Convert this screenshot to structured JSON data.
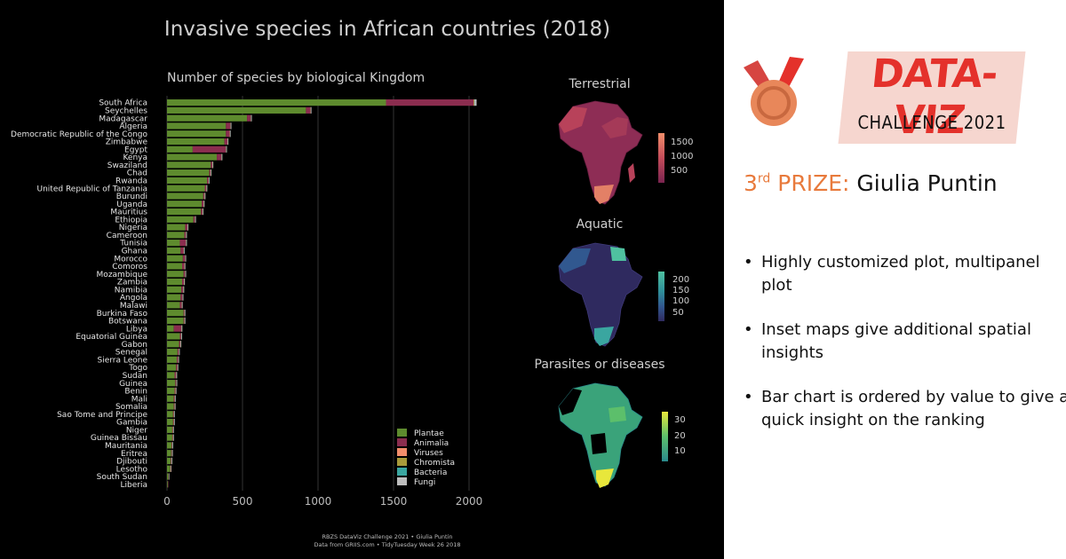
{
  "slide": {
    "badge_title": "DATA-VIZ",
    "badge_subtitle": "CHALLENGE 2021",
    "prize_ordinal": "3",
    "prize_suffix": "rd",
    "prize_label": " PRIZE:",
    "winner": "Giulia Puntin",
    "points": [
      "Highly customized plot, multipanel plot",
      "Inset maps give additional spatial insights",
      "Bar chart is ordered by value to give a quick insight on the ranking"
    ],
    "colors": {
      "accent": "#e87a3c",
      "badge_red": "#e4312b",
      "medal_ribbon": "#d64541",
      "medal": "#e8875a"
    },
    "icon": "medal-icon"
  },
  "chart_data": [
    {
      "type": "bar",
      "title": "Invasive species in African countries (2018)",
      "subtitle": "Number of species by biological Kingdom",
      "xlabel": "",
      "ylabel": "",
      "xlim": [
        0,
        2050
      ],
      "xticks": [
        "0",
        "500",
        "1000",
        "1500",
        "2000"
      ],
      "legend_position": "bottom-right",
      "categories": [
        "South Africa",
        "Seychelles",
        "Madagascar",
        "Algeria",
        "Democratic Republic of the Congo",
        "Zimbabwe",
        "Egypt",
        "Kenya",
        "Swaziland",
        "Chad",
        "Rwanda",
        "United Republic of Tanzania",
        "Burundi",
        "Uganda",
        "Mauritius",
        "Ethiopia",
        "Nigeria",
        "Cameroon",
        "Tunisia",
        "Ghana",
        "Morocco",
        "Comoros",
        "Mozambique",
        "Zambia",
        "Namibia",
        "Angola",
        "Malawi",
        "Burkina Faso",
        "Botswana",
        "Libya",
        "Equatorial Guinea",
        "Gabon",
        "Senegal",
        "Sierra Leone",
        "Togo",
        "Sudan",
        "Guinea",
        "Benin",
        "Mali",
        "Somalia",
        "Sao Tome and Principe",
        "Gambia",
        "Niger",
        "Guinea Bissau",
        "Mauritania",
        "Eritrea",
        "Djibouti",
        "Lesotho",
        "South Sudan",
        "Liberia"
      ],
      "series": [
        {
          "name": "Plantae",
          "color": "#5e8b2e",
          "values": [
            1450,
            920,
            530,
            390,
            390,
            380,
            170,
            330,
            290,
            280,
            265,
            250,
            240,
            230,
            225,
            175,
            120,
            115,
            85,
            90,
            105,
            100,
            110,
            100,
            95,
            90,
            85,
            110,
            110,
            45,
            85,
            80,
            70,
            65,
            60,
            50,
            55,
            50,
            45,
            45,
            40,
            40,
            35,
            35,
            30,
            28,
            25,
            22,
            10,
            5
          ]
        },
        {
          "name": "Animalia",
          "color": "#8b2d4f",
          "values": [
            580,
            30,
            25,
            30,
            25,
            20,
            220,
            30,
            10,
            8,
            10,
            10,
            8,
            12,
            10,
            10,
            15,
            10,
            40,
            20,
            15,
            15,
            10,
            12,
            12,
            12,
            12,
            5,
            5,
            50,
            8,
            8,
            8,
            8,
            8,
            10,
            6,
            6,
            6,
            5,
            5,
            5,
            4,
            4,
            4,
            4,
            4,
            2,
            2,
            1
          ]
        },
        {
          "name": "Viruses",
          "color": "#f28e6b",
          "values": [
            2,
            1,
            1,
            1,
            1,
            1,
            1,
            1,
            1,
            1,
            1,
            1,
            1,
            1,
            1,
            1,
            1,
            1,
            1,
            1,
            1,
            1,
            1,
            1,
            1,
            1,
            1,
            1,
            1,
            1,
            1,
            1,
            1,
            1,
            1,
            1,
            1,
            1,
            1,
            1,
            1,
            1,
            1,
            1,
            1,
            1,
            1,
            1,
            0,
            0
          ]
        },
        {
          "name": "Chromista",
          "color": "#a89a3a",
          "values": [
            3,
            1,
            1,
            1,
            1,
            1,
            1,
            1,
            1,
            1,
            1,
            1,
            1,
            1,
            1,
            1,
            1,
            1,
            1,
            1,
            1,
            1,
            1,
            1,
            1,
            1,
            1,
            1,
            1,
            1,
            1,
            1,
            1,
            1,
            1,
            1,
            1,
            1,
            1,
            1,
            1,
            1,
            1,
            1,
            1,
            1,
            1,
            0,
            0,
            0
          ]
        },
        {
          "name": "Bacteria",
          "color": "#3aa6a0",
          "values": [
            2,
            1,
            1,
            1,
            1,
            1,
            1,
            1,
            1,
            1,
            1,
            1,
            1,
            1,
            1,
            1,
            1,
            1,
            1,
            1,
            1,
            1,
            1,
            1,
            1,
            1,
            1,
            1,
            1,
            1,
            1,
            1,
            1,
            1,
            1,
            1,
            1,
            1,
            1,
            1,
            1,
            1,
            1,
            1,
            1,
            1,
            1,
            0,
            0,
            0
          ]
        },
        {
          "name": "Fungi",
          "color": "#bdbdbd",
          "values": [
            13,
            3,
            3,
            3,
            3,
            3,
            3,
            3,
            3,
            3,
            3,
            3,
            3,
            3,
            3,
            3,
            3,
            3,
            3,
            3,
            3,
            3,
            3,
            3,
            3,
            3,
            3,
            3,
            3,
            3,
            3,
            3,
            3,
            3,
            3,
            3,
            3,
            3,
            3,
            3,
            3,
            3,
            3,
            3,
            3,
            3,
            3,
            1,
            1,
            0
          ]
        }
      ]
    },
    {
      "type": "heatmap",
      "title": "Terrestrial",
      "legend_ticks": [
        "1500",
        "1000",
        "500"
      ],
      "legend_position": "right",
      "colors": [
        "#d86a5f",
        "#b8425a",
        "#8e2d55"
      ]
    },
    {
      "type": "heatmap",
      "title": "Aquatic",
      "legend_ticks": [
        "200",
        "150",
        "100",
        "50"
      ],
      "legend_position": "right",
      "colors": [
        "#4fc1a0",
        "#2f8f9a",
        "#31588f",
        "#2f2a5f"
      ]
    },
    {
      "type": "heatmap",
      "title": "Parasites or diseases",
      "legend_ticks": [
        "30",
        "20",
        "10"
      ],
      "legend_position": "right",
      "colors": [
        "#e8e73b",
        "#5cbf6b",
        "#2a8a8c"
      ]
    }
  ],
  "caption": {
    "line1": "RBZS DataViz Challenge 2021 • Giulia Puntin",
    "line2": "Data from GRIIS.com • TidyTuesday Week 26 2018"
  }
}
